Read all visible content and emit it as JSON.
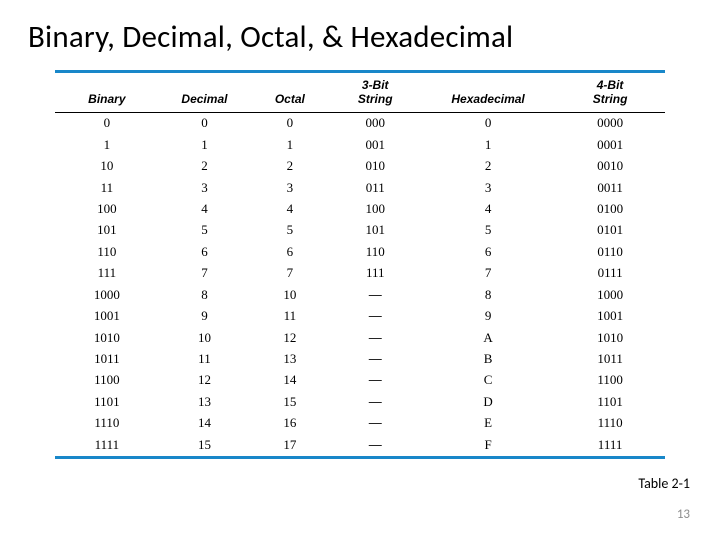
{
  "title": "Binary, Decimal, Octal, & Hexadecimal",
  "caption": "Table  2-1",
  "page_number": "13",
  "table": {
    "type": "table",
    "rule_color_accent": "#1887c9",
    "rule_color_mid": "#000000",
    "background_color": "#ffffff",
    "header_font": "Arial",
    "header_fontsize": 12,
    "header_fontweight": "bold",
    "header_fontstyle": "italic",
    "body_font": "Times New Roman",
    "body_fontsize": 13,
    "columns": [
      {
        "key": "binary",
        "label_line1": "",
        "label_line2": "Binary",
        "width_pct": 17,
        "align": "center"
      },
      {
        "key": "decimal",
        "label_line1": "",
        "label_line2": "Decimal",
        "width_pct": 15,
        "align": "center"
      },
      {
        "key": "octal",
        "label_line1": "",
        "label_line2": "Octal",
        "width_pct": 13,
        "align": "center"
      },
      {
        "key": "bit3",
        "label_line1": "3-Bit",
        "label_line2": "String",
        "width_pct": 15,
        "align": "center"
      },
      {
        "key": "hex",
        "label_line1": "",
        "label_line2": "Hexadecimal",
        "width_pct": 22,
        "align": "center"
      },
      {
        "key": "bit4",
        "label_line1": "4-Bit",
        "label_line2": "String",
        "width_pct": 18,
        "align": "center"
      }
    ],
    "rows": [
      [
        "0",
        "0",
        "0",
        "000",
        "0",
        "0000"
      ],
      [
        "1",
        "1",
        "1",
        "001",
        "1",
        "0001"
      ],
      [
        "10",
        "2",
        "2",
        "010",
        "2",
        "0010"
      ],
      [
        "11",
        "3",
        "3",
        "011",
        "3",
        "0011"
      ],
      [
        "100",
        "4",
        "4",
        "100",
        "4",
        "0100"
      ],
      [
        "101",
        "5",
        "5",
        "101",
        "5",
        "0101"
      ],
      [
        "110",
        "6",
        "6",
        "110",
        "6",
        "0110"
      ],
      [
        "111",
        "7",
        "7",
        "111",
        "7",
        "0111"
      ],
      [
        "1000",
        "8",
        "10",
        "—",
        "8",
        "1000"
      ],
      [
        "1001",
        "9",
        "11",
        "—",
        "9",
        "1001"
      ],
      [
        "1010",
        "10",
        "12",
        "—",
        "A",
        "1010"
      ],
      [
        "1011",
        "11",
        "13",
        "—",
        "B",
        "1011"
      ],
      [
        "1100",
        "12",
        "14",
        "—",
        "C",
        "1100"
      ],
      [
        "1101",
        "13",
        "15",
        "—",
        "D",
        "1101"
      ],
      [
        "1110",
        "14",
        "16",
        "—",
        "E",
        "1110"
      ],
      [
        "1111",
        "15",
        "17",
        "—",
        "F",
        "1111"
      ]
    ]
  }
}
